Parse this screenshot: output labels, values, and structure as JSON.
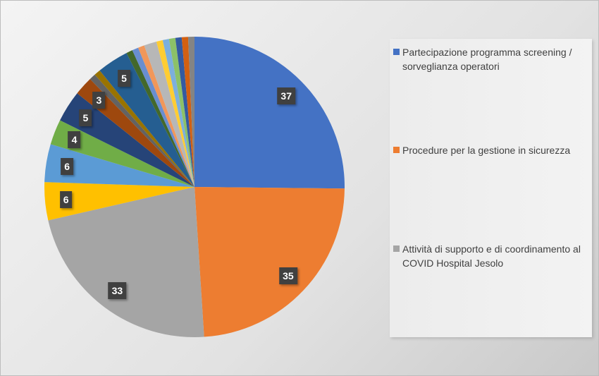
{
  "chart_data": {
    "type": "pie",
    "title": "",
    "start_angle": "top, clockwise",
    "legend_position": "right",
    "slices": [
      {
        "name": "Partecipazione programma screening / sorveglianza operatori",
        "value": 37,
        "color": "#4472C4",
        "label": "37"
      },
      {
        "name": "Procedure per la gestione in sicurezza",
        "value": 35,
        "color": "#ED7D31",
        "label": "35"
      },
      {
        "name": "Attività di supporto e di coordinamento al COVID Hospital Jesolo",
        "value": 33,
        "color": "#A5A5A5",
        "label": "33"
      },
      {
        "name": "",
        "value": 6,
        "color": "#FFC000",
        "label": "6"
      },
      {
        "name": "",
        "value": 6,
        "color": "#5B9BD5",
        "label": "6"
      },
      {
        "name": "",
        "value": 4,
        "color": "#70AD47",
        "label": "4"
      },
      {
        "name": "",
        "value": 5,
        "color": "#264478",
        "label": "5"
      },
      {
        "name": "",
        "value": 3,
        "color": "#9E480E",
        "label": "3"
      },
      {
        "name": "",
        "value": 1,
        "color": "#636363",
        "label": ""
      },
      {
        "name": "",
        "value": 1,
        "color": "#997300",
        "label": ""
      },
      {
        "name": "",
        "value": 5,
        "color": "#255E91",
        "label": "5"
      },
      {
        "name": "",
        "value": 1,
        "color": "#43682B",
        "label": ""
      },
      {
        "name": "",
        "value": 1,
        "color": "#698ED0",
        "label": ""
      },
      {
        "name": "",
        "value": 1,
        "color": "#F1975A",
        "label": ""
      },
      {
        "name": "",
        "value": 2,
        "color": "#B7B7B7",
        "label": ""
      },
      {
        "name": "",
        "value": 1,
        "color": "#FFCD33",
        "label": ""
      },
      {
        "name": "",
        "value": 1,
        "color": "#7CAFDD",
        "label": ""
      },
      {
        "name": "",
        "value": 1,
        "color": "#8CC168",
        "label": ""
      },
      {
        "name": "",
        "value": 1,
        "color": "#335AA1",
        "label": ""
      },
      {
        "name": "",
        "value": 1,
        "color": "#D26012",
        "label": ""
      },
      {
        "name": "",
        "value": 1,
        "color": "#848484",
        "label": ""
      }
    ],
    "legend": [
      {
        "label": "Partecipazione programma screening / sorveglianza operatori",
        "color": "#4472C4"
      },
      {
        "label": "Procedure per la gestione in sicurezza",
        "color": "#ED7D31"
      },
      {
        "label": "Attività di supporto e di coordinamento al COVID Hospital Jesolo",
        "color": "#A5A5A5"
      }
    ]
  }
}
